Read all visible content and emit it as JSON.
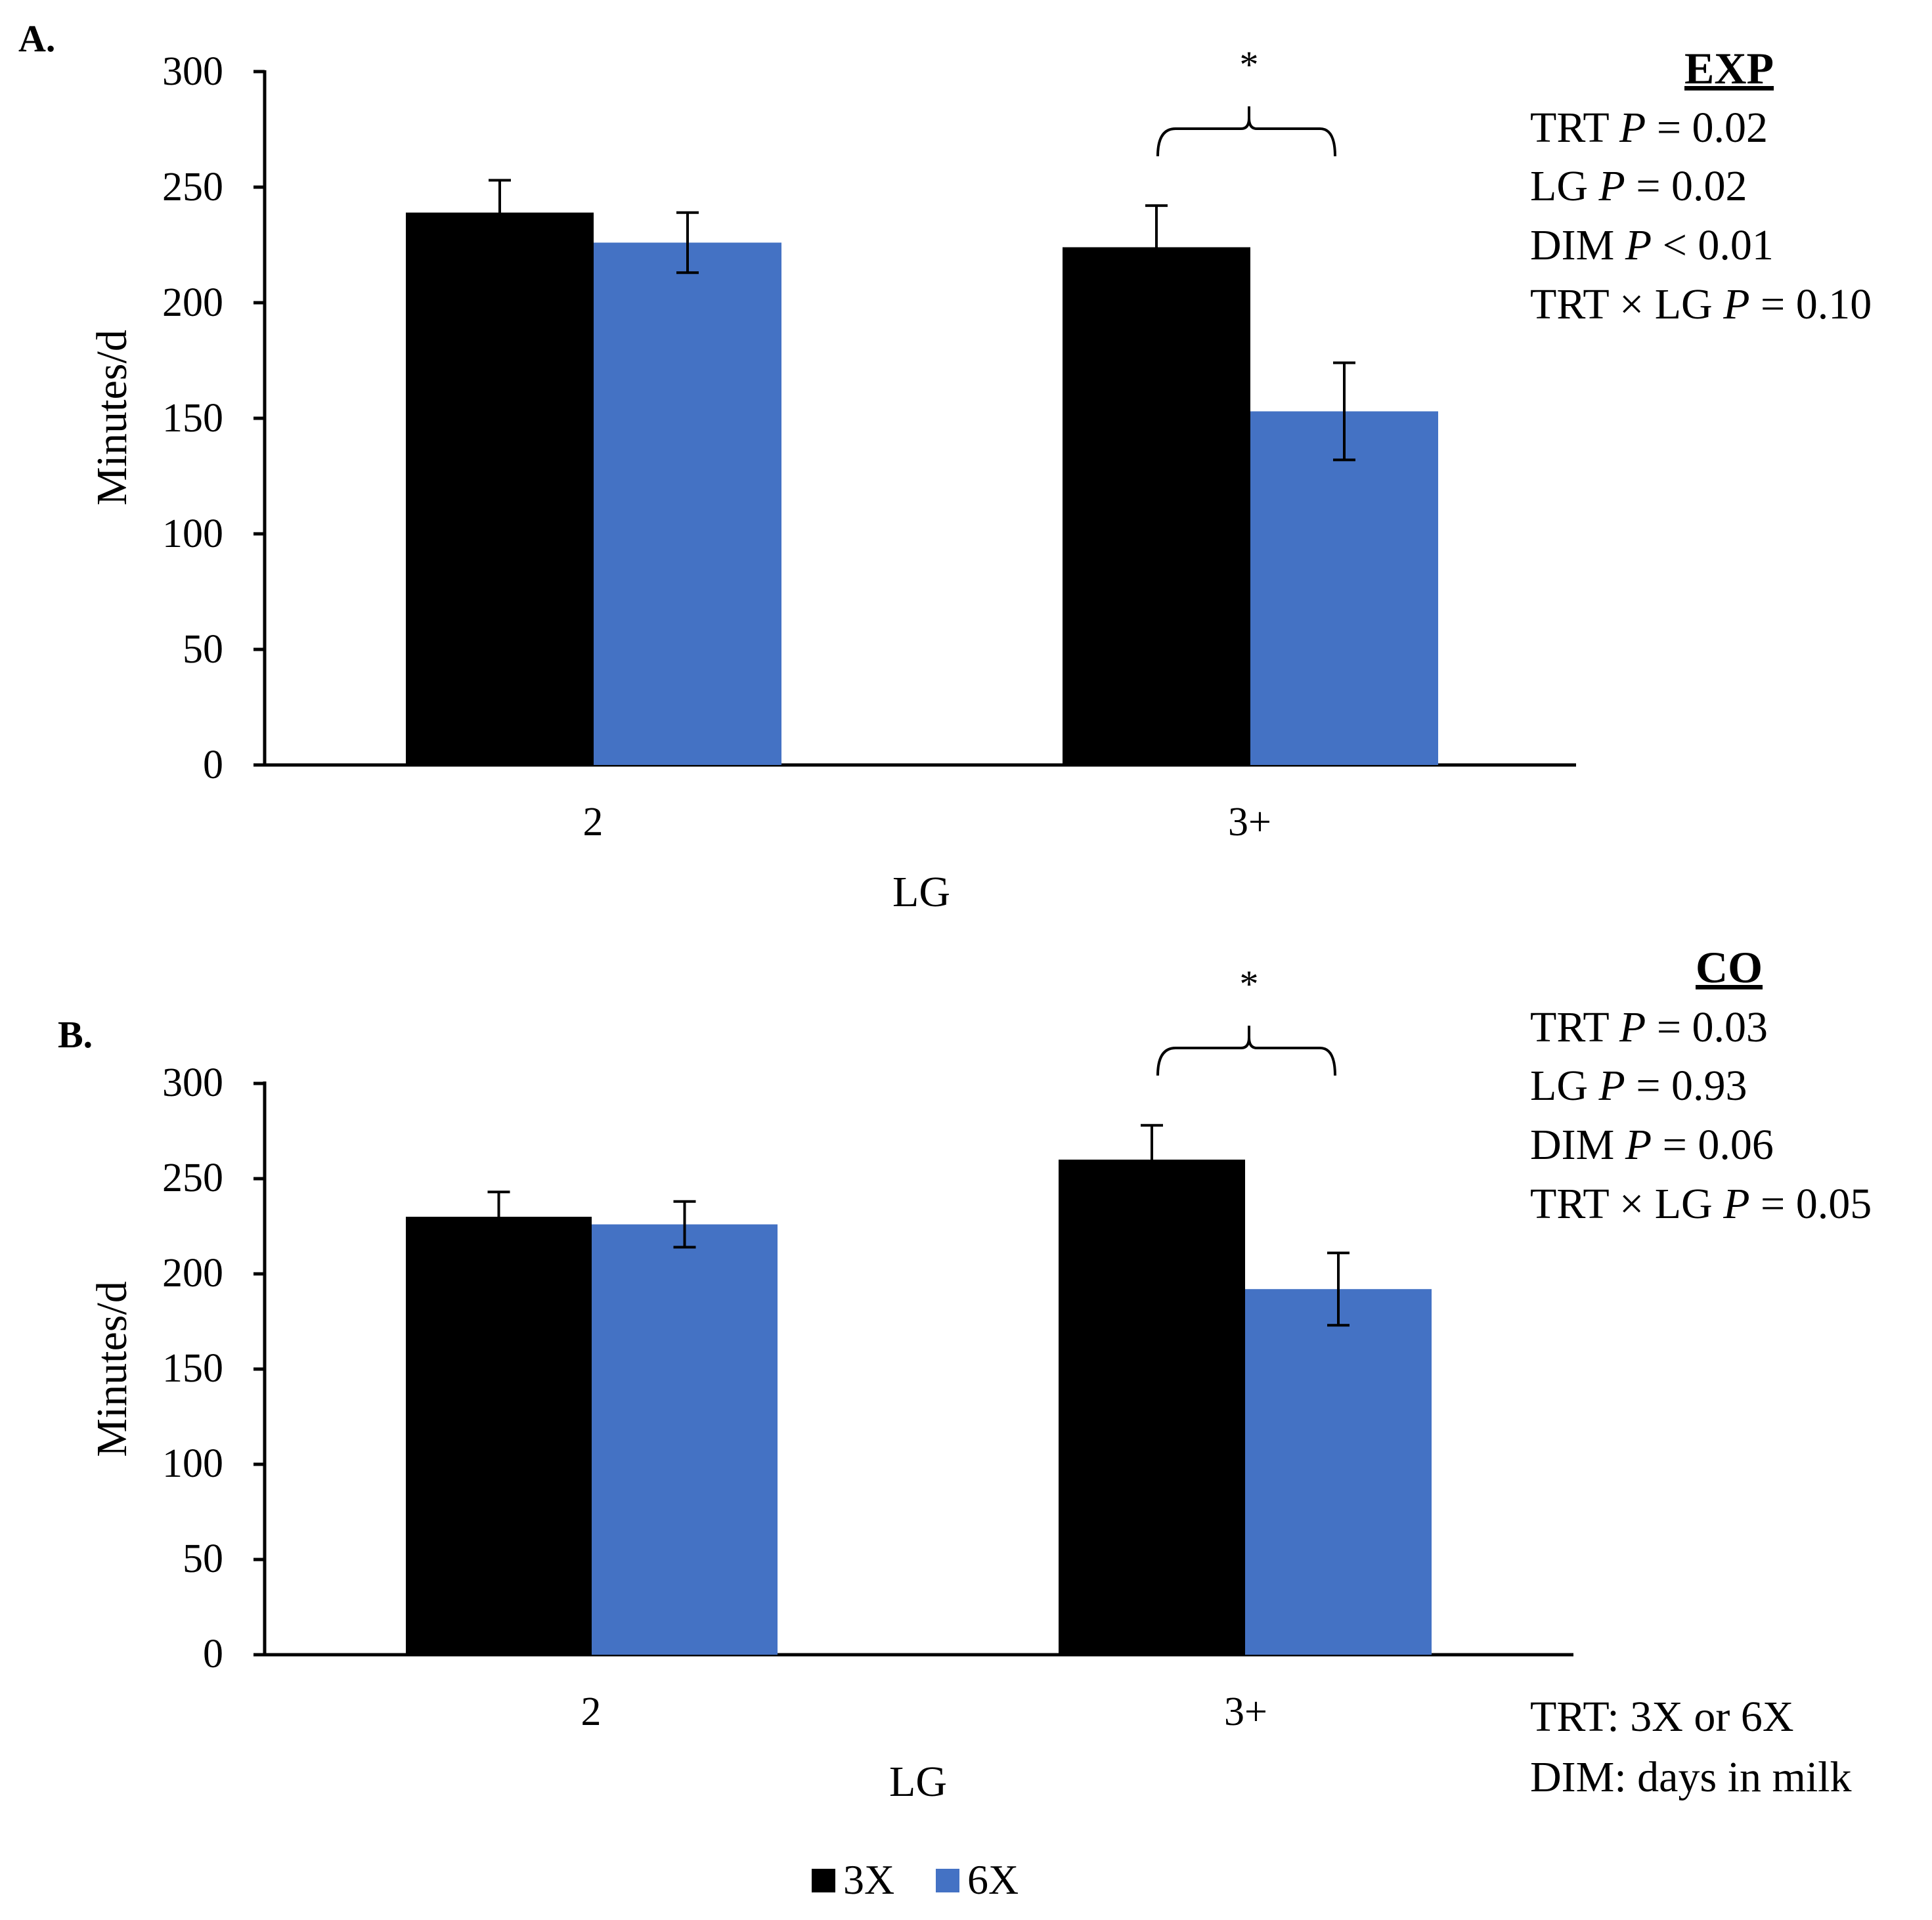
{
  "chart_data": [
    {
      "type": "bar",
      "panel_label": "A.",
      "categories": [
        "2",
        "3+"
      ],
      "series": [
        {
          "name": "3X",
          "color": "#000000",
          "values": [
            239,
            224
          ],
          "errors": [
            14,
            18
          ]
        },
        {
          "name": "6X",
          "color": "#4472C4",
          "values": [
            226,
            153
          ],
          "errors": [
            13,
            21
          ]
        }
      ],
      "xlabel": "LG",
      "ylabel": "Minutes/d",
      "ylim": [
        0,
        300
      ],
      "yticks": [
        "0",
        "50",
        "100",
        "150",
        "200",
        "250",
        "300"
      ],
      "significance": {
        "category_index": 1,
        "marker": "*"
      },
      "stats_title": "EXP",
      "stats": [
        {
          "label": "TRT",
          "p": "P",
          "rest": " = 0.02"
        },
        {
          "label": "LG",
          "p": "P",
          "rest": " = 0.02"
        },
        {
          "label": "DIM",
          "p": "P",
          "rest": " < 0.01"
        },
        {
          "label": "TRT × LG",
          "p": "P",
          "rest": " = 0.10"
        }
      ]
    },
    {
      "type": "bar",
      "panel_label": "B.",
      "categories": [
        "2",
        "3+"
      ],
      "series": [
        {
          "name": "3X",
          "color": "#000000",
          "values": [
            230,
            260
          ],
          "errors": [
            13,
            18
          ]
        },
        {
          "name": "6X",
          "color": "#4472C4",
          "values": [
            226,
            192
          ],
          "errors": [
            12,
            19
          ]
        }
      ],
      "xlabel": "LG",
      "ylabel": "Minutes/d",
      "ylim": [
        0,
        300
      ],
      "yticks": [
        "0",
        "50",
        "100",
        "150",
        "200",
        "250",
        "300"
      ],
      "significance": {
        "category_index": 1,
        "marker": "*"
      },
      "stats_title": "CO",
      "stats": [
        {
          "label": "TRT",
          "p": "P",
          "rest": " = 0.03"
        },
        {
          "label": "LG",
          "p": "P",
          "rest": " = 0.93"
        },
        {
          "label": "DIM",
          "p": "P",
          "rest": " = 0.06"
        },
        {
          "label": "TRT × LG",
          "p": "P",
          "rest": " = 0.05"
        }
      ]
    }
  ],
  "footnotes": [
    "TRT: 3X or 6X",
    "DIM: days in milk"
  ],
  "legend": [
    {
      "name": "3X",
      "color": "#000000"
    },
    {
      "name": "6X",
      "color": "#4472C4"
    }
  ]
}
